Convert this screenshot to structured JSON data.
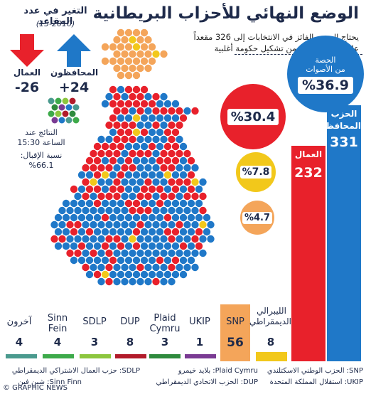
{
  "header": {
    "title": "الوضع النهائي للأحزاب البريطانية",
    "subtitle_1": "يحتاج الحزب الفائز في الانتخابات إلى 326 مقعداً",
    "subtitle_2": "على الأقل للتمكن من تشكيل حكومة أغلبية"
  },
  "change": {
    "title": "التغير في عدد المقاعد",
    "years": "(15-2010)",
    "conservative_label": "المحافظون",
    "conservative_value": "+24",
    "labour_label": "العمال",
    "labour_value": "-26"
  },
  "results": {
    "time_line1": "النتائج عند",
    "time_line2": "الساعة 15:30",
    "turnout_label": "نسبة الإقبال:",
    "turnout_value": "%66.1"
  },
  "vote_share": {
    "label_line1": "الحصة",
    "label_line2": "من الأصوات",
    "conservative": "%36.9",
    "labour": "%30.4",
    "yellow": "%7.8",
    "orange": "%4.7"
  },
  "big_bars": [
    {
      "label_line1": "الحزب",
      "label_line2": "المحافظ",
      "seats": "331",
      "color": "#1f78c8",
      "value": 331
    },
    {
      "label_line1": "العمال",
      "label_line2": "",
      "seats": "232",
      "color": "#e8212b",
      "value": 232
    }
  ],
  "parties": [
    {
      "name_line1": "آخرون",
      "name_line2": "",
      "seats": "4",
      "color": "#4a9a8e"
    },
    {
      "name_line1": "Sinn",
      "name_line2": "Fein",
      "seats": "4",
      "color": "#3daa4a"
    },
    {
      "name_line1": "SDLP",
      "name_line2": "",
      "seats": "3",
      "color": "#8cc63e"
    },
    {
      "name_line1": "DUP",
      "name_line2": "",
      "seats": "8",
      "color": "#b21b2a"
    },
    {
      "name_line1": "Plaid",
      "name_line2": "Cymru",
      "seats": "3",
      "color": "#2e8a3d"
    },
    {
      "name_line1": "UKIP",
      "name_line2": "",
      "seats": "1",
      "color": "#7a3b93"
    },
    {
      "name_line1": "SNP",
      "name_line2": "",
      "seats": "56",
      "color": "#f4a55a"
    },
    {
      "name_line1": "الليبرالي",
      "name_line2": "الديمقراطي",
      "seats": "8",
      "color": "#f2c81b"
    }
  ],
  "legend": {
    "snp": "SNP: الحزب الوطني الاسكتلندي",
    "ukip": "UKIP: استقلال المملكة المتحدة",
    "plaid": "Plaid Cymru: بلايد خيمرو",
    "dup": "DUP: الحزب الاتحادي الديمقراطي",
    "sdlp": "SDLP: حزب العمال الاشتراكي الديمقراطي",
    "sinn": "Sinn Finn: شين فين"
  },
  "footer": {
    "credit": "© GRAPHIC NEWS"
  },
  "colors": {
    "conservative": "#1f78c8",
    "labour": "#e8212b",
    "snp": "#f4a55a",
    "libdem": "#f2c81b"
  }
}
